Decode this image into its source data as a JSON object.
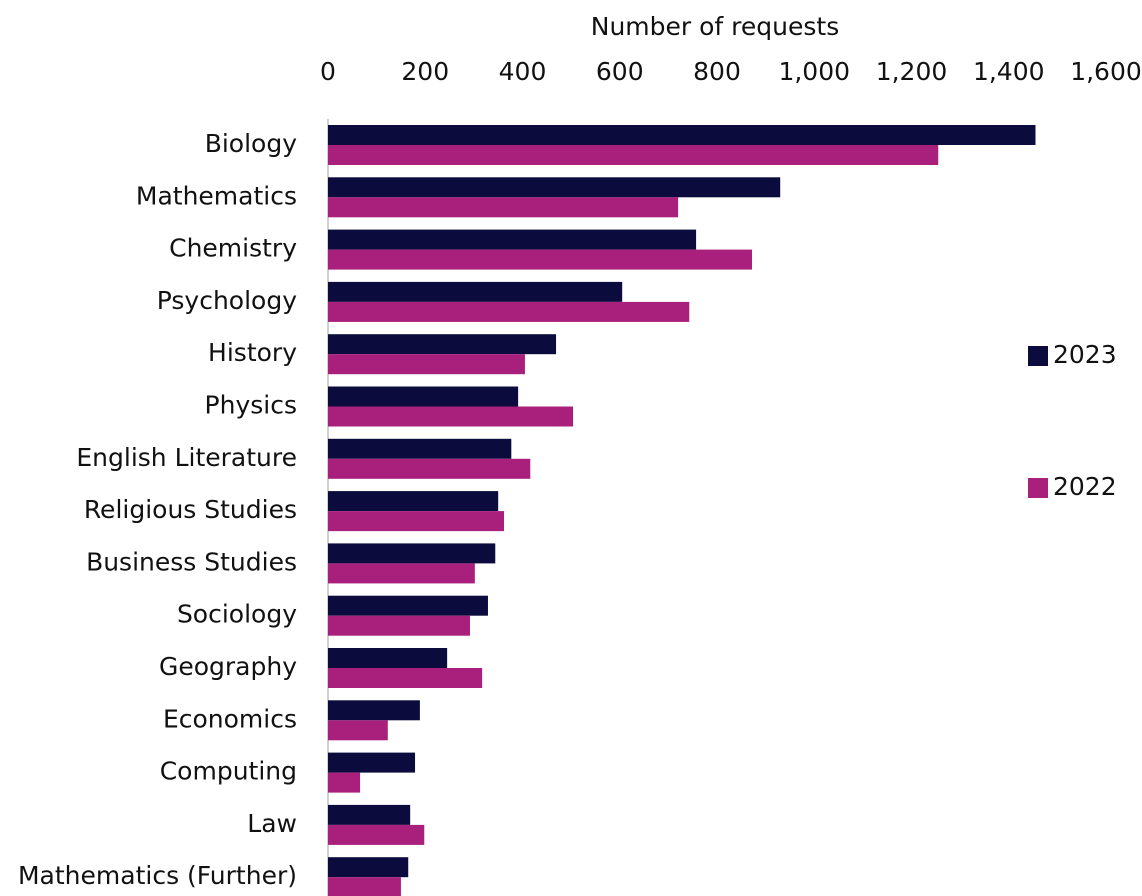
{
  "chart_data": {
    "type": "hbar",
    "x_label": "Number of requests",
    "categories": [
      "Biology",
      "Mathematics",
      "Chemistry",
      "Psychology",
      "History",
      "Physics",
      "English Literature",
      "Religious Studies",
      "Business Studies",
      "Sociology",
      "Geography",
      "Economics",
      "Computing",
      "Law",
      "Mathematics (Further)"
    ],
    "series": [
      {
        "name": "2023",
        "color": "#0b0c3d",
        "values": [
          1455,
          930,
          757,
          605,
          469,
          391,
          377,
          350,
          344,
          329,
          245,
          189,
          179,
          169,
          165
        ]
      },
      {
        "name": "2022",
        "color": "#a91f7c",
        "values": [
          1255,
          720,
          872,
          743,
          405,
          504,
          416,
          362,
          302,
          292,
          317,
          123,
          66,
          198,
          150
        ]
      }
    ],
    "xlim": [
      0,
      1600
    ],
    "xticks": [
      0,
      200,
      400,
      600,
      800,
      {
        "value": 1000,
        "label": "1,000"
      },
      {
        "value": 1200,
        "label": "1,200"
      },
      {
        "value": 1400,
        "label": "1,400"
      },
      {
        "value": 1600,
        "label": "1,600"
      }
    ],
    "legend": "right"
  }
}
